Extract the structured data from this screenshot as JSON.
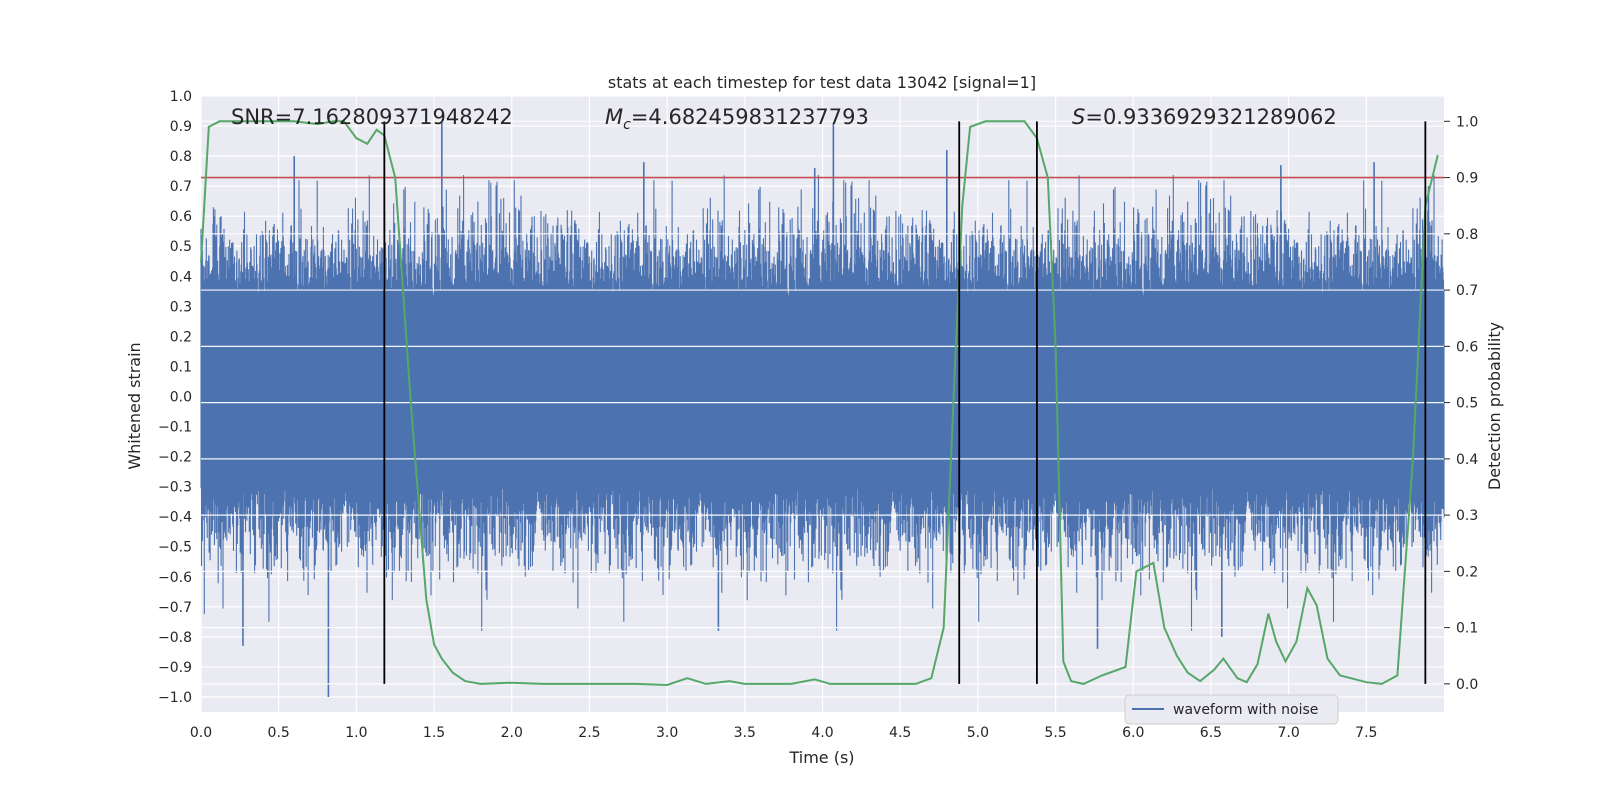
{
  "chart_data": {
    "type": "line",
    "title": "stats at each timestep for test data 13042 [signal=1]",
    "xlabel": "Time (s)",
    "ylabel": "Whitened strain",
    "ylabel_right": "Detection probability",
    "xlim": [
      0.0,
      8.0
    ],
    "ylim": [
      -1.05,
      1.0
    ],
    "ylim_right": [
      -0.05,
      1.045
    ],
    "x_ticks": [
      0.0,
      0.5,
      1.0,
      1.5,
      2.0,
      2.5,
      3.0,
      3.5,
      4.0,
      4.5,
      5.0,
      5.5,
      6.0,
      6.5,
      7.0,
      7.5
    ],
    "x_tick_labels": [
      "0.0",
      "0.5",
      "1.0",
      "1.5",
      "2.0",
      "2.5",
      "3.0",
      "3.5",
      "4.0",
      "4.5",
      "5.0",
      "5.5",
      "6.0",
      "6.5",
      "7.0",
      "7.5"
    ],
    "y_ticks": [
      1.0,
      0.9,
      0.8,
      0.7,
      0.6,
      0.5,
      0.4,
      0.3,
      0.2,
      0.1,
      0.0,
      -0.1,
      -0.2,
      -0.3,
      -0.4,
      -0.5,
      -0.6,
      -0.7,
      -0.8,
      -0.9,
      -1.0
    ],
    "y_tick_labels": [
      "1.0",
      "0.9",
      "0.8",
      "0.7",
      "0.6",
      "0.5",
      "0.4",
      "0.3",
      "0.2",
      "0.1",
      "0.0",
      "−0.1",
      "−0.2",
      "−0.3",
      "−0.4",
      "−0.5",
      "−0.6",
      "−0.7",
      "−0.8",
      "−0.9",
      "−1.0"
    ],
    "y_right_ticks": [
      1.0,
      0.9,
      0.8,
      0.7,
      0.6,
      0.5,
      0.4,
      0.3,
      0.2,
      0.1,
      0.0
    ],
    "y_right_tick_labels": [
      "1.0",
      "0.9",
      "0.8",
      "0.7",
      "0.6",
      "0.5",
      "0.4",
      "0.3",
      "0.2",
      "0.1",
      "0.0"
    ],
    "annotations": {
      "snr": "SNR=7.162809371948242",
      "mc_symbol": "M",
      "mc_subscript": "c",
      "mc_value": "=4.682459831237793",
      "s_symbol": "S",
      "s_value": "=0.9336929321289062"
    },
    "threshold": {
      "value": 0.9,
      "axis": "right",
      "color": "#c44e52"
    },
    "vertical_lines": [
      1.18,
      4.88,
      5.38,
      7.88
    ],
    "series": [
      {
        "name": "waveform with noise",
        "axis": "left",
        "color": "#4c72b0",
        "kind": "noise",
        "core_envelope": [
          -0.42,
          0.46
        ],
        "spike_peaks": [
          {
            "x": 0.82,
            "y": -1.0
          },
          {
            "x": 0.27,
            "y": -0.83
          },
          {
            "x": 1.55,
            "y": 0.91
          },
          {
            "x": 4.07,
            "y": 0.91
          },
          {
            "x": 4.8,
            "y": 0.82
          },
          {
            "x": 3.33,
            "y": -0.78
          },
          {
            "x": 5.77,
            "y": -0.84
          },
          {
            "x": 6.57,
            "y": -0.8
          },
          {
            "x": 2.85,
            "y": 0.78
          },
          {
            "x": 7.55,
            "y": 0.78
          },
          {
            "x": 6.95,
            "y": 0.77
          },
          {
            "x": 0.6,
            "y": 0.8
          },
          {
            "x": 3.95,
            "y": 0.76
          },
          {
            "x": 7.9,
            "y": 0.7
          }
        ]
      },
      {
        "name": "detection probability",
        "axis": "right",
        "color": "#55a868",
        "x": [
          0.0,
          0.05,
          0.12,
          0.25,
          0.5,
          0.6,
          0.75,
          0.85,
          0.92,
          1.0,
          1.07,
          1.13,
          1.18,
          1.25,
          1.35,
          1.45,
          1.5,
          1.55,
          1.62,
          1.7,
          1.8,
          2.0,
          2.2,
          2.5,
          2.8,
          3.0,
          3.13,
          3.25,
          3.4,
          3.5,
          3.8,
          3.95,
          4.05,
          4.3,
          4.6,
          4.7,
          4.78,
          4.85,
          4.9,
          4.95,
          5.05,
          5.3,
          5.38,
          5.45,
          5.5,
          5.55,
          5.6,
          5.68,
          5.8,
          5.95,
          6.02,
          6.13,
          6.2,
          6.28,
          6.35,
          6.43,
          6.52,
          6.58,
          6.67,
          6.73,
          6.8,
          6.87,
          6.92,
          6.98,
          7.05,
          7.12,
          7.18,
          7.25,
          7.33,
          7.4,
          7.5,
          7.6,
          7.7,
          7.8,
          7.88,
          7.96
        ],
        "y": [
          0.75,
          0.99,
          1.0,
          1.0,
          1.0,
          1.0,
          0.995,
          1.0,
          1.0,
          0.97,
          0.96,
          0.985,
          0.975,
          0.9,
          0.5,
          0.15,
          0.07,
          0.045,
          0.02,
          0.005,
          0.0,
          0.002,
          0.0,
          0.0,
          0.0,
          -0.002,
          0.01,
          0.0,
          0.005,
          0.0,
          0.0,
          0.008,
          0.0,
          0.0,
          0.0,
          0.01,
          0.1,
          0.55,
          0.85,
          0.99,
          1.0,
          1.0,
          0.97,
          0.9,
          0.6,
          0.04,
          0.005,
          0.0,
          0.015,
          0.03,
          0.2,
          0.215,
          0.1,
          0.05,
          0.02,
          0.005,
          0.025,
          0.045,
          0.01,
          0.003,
          0.035,
          0.125,
          0.075,
          0.04,
          0.075,
          0.17,
          0.14,
          0.045,
          0.015,
          0.01,
          0.003,
          0.0,
          0.015,
          0.4,
          0.85,
          0.94
        ]
      }
    ],
    "legend": {
      "label": "waveform with noise",
      "placement": "lower-right"
    }
  }
}
